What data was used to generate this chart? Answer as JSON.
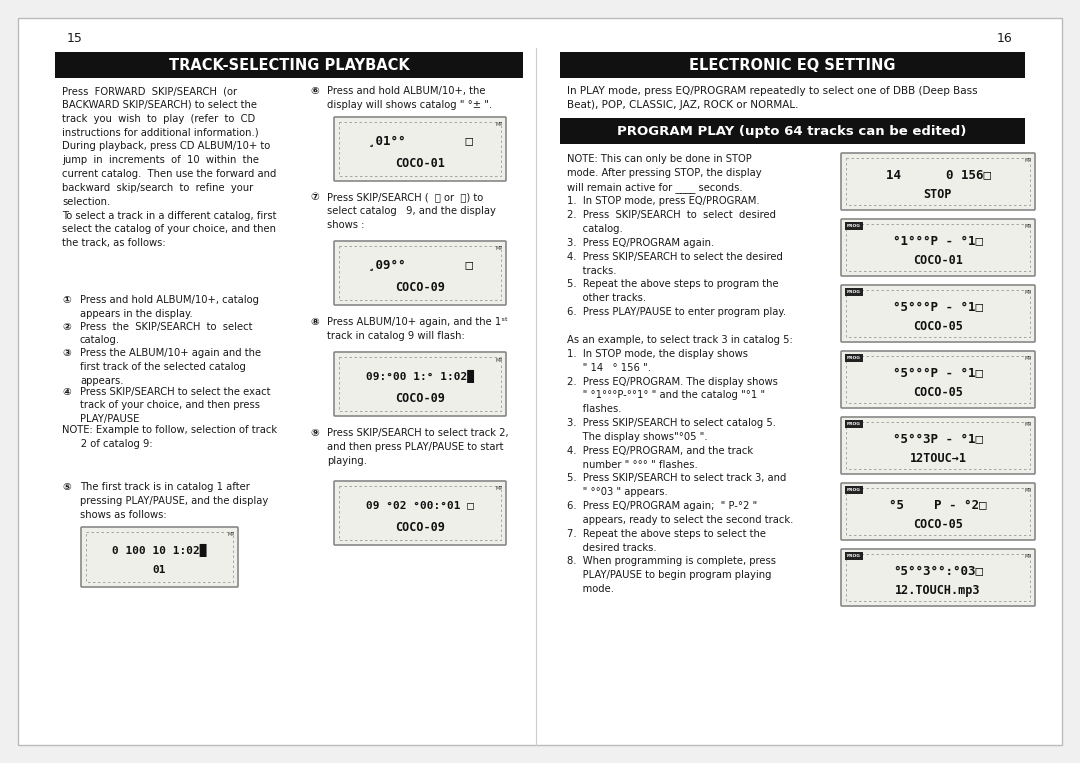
{
  "bg_color": "#f0f0f0",
  "page_bg": "#ffffff",
  "page_num_left": "15",
  "page_num_right": "16",
  "left_section_title": "TRACK-SELECTING PLAYBACK",
  "right_section_title": "ELECTRONIC EQ SETTING",
  "program_play_title": "PROGRAM PLAY (upto 64 tracks can be edited)"
}
